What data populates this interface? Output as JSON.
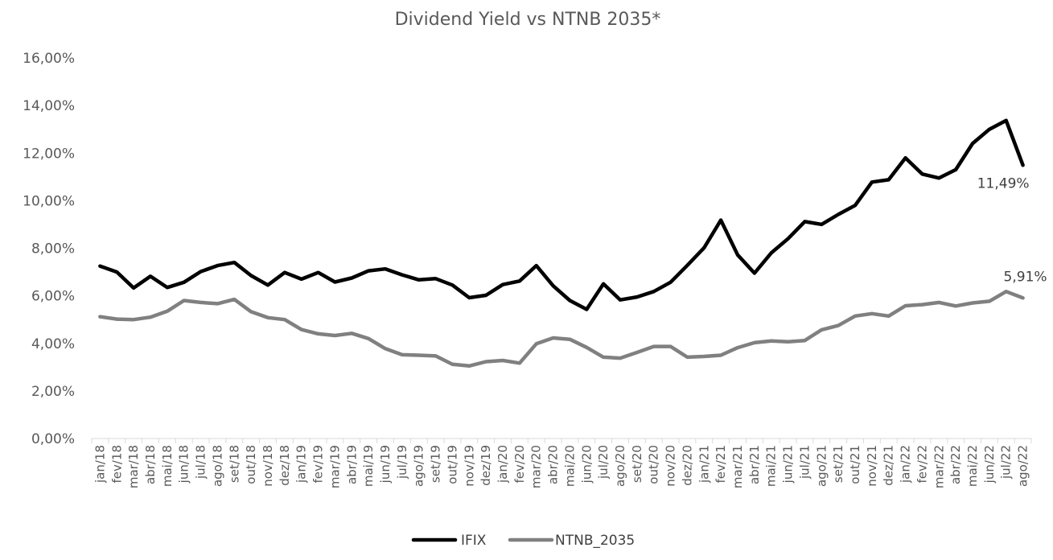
{
  "chart_data": {
    "type": "line",
    "title": "Dividend Yield vs NTNB 2035*",
    "xlabel": "",
    "ylabel": "",
    "ylim": [
      0,
      16
    ],
    "yticks": [
      "0,00%",
      "2,00%",
      "4,00%",
      "6,00%",
      "8,00%",
      "10,00%",
      "12,00%",
      "14,00%",
      "16,00%"
    ],
    "grid": false,
    "legend_position": "bottom",
    "categories": [
      "jan/18",
      "fev/18",
      "mar/18",
      "abr/18",
      "mai/18",
      "jun/18",
      "jul/18",
      "ago/18",
      "set/18",
      "out/18",
      "nov/18",
      "dez/18",
      "jan/19",
      "fev/19",
      "mar/19",
      "abr/19",
      "mai/19",
      "jun/19",
      "jul/19",
      "ago/19",
      "set/19",
      "out/19",
      "nov/19",
      "dez/19",
      "jan/20",
      "fev/20",
      "mar/20",
      "abr/20",
      "mai/20",
      "jun/20",
      "jul/20",
      "ago/20",
      "set/20",
      "out/20",
      "nov/20",
      "dez/20",
      "jan/21",
      "fev/21",
      "mar/21",
      "abr/21",
      "mai/21",
      "jun/21",
      "jul/21",
      "ago/21",
      "set/21",
      "out/21",
      "nov/21",
      "dez/21",
      "jan/22",
      "fev/22",
      "mar/22",
      "abr/22",
      "mai/22",
      "jun/22",
      "jul/22",
      "ago/22"
    ],
    "series": [
      {
        "name": "IFIX",
        "color": "#000000",
        "values": [
          7.25,
          7.0,
          6.33,
          6.82,
          6.35,
          6.57,
          7.02,
          7.27,
          7.4,
          6.85,
          6.45,
          6.98,
          6.7,
          6.98,
          6.58,
          6.75,
          7.05,
          7.13,
          6.88,
          6.67,
          6.72,
          6.45,
          5.92,
          6.02,
          6.47,
          6.62,
          7.27,
          6.42,
          5.8,
          5.43,
          6.5,
          5.83,
          5.95,
          6.18,
          6.57,
          7.28,
          8.02,
          9.18,
          7.72,
          6.95,
          7.8,
          8.4,
          9.12,
          9.0,
          9.42,
          9.8,
          10.78,
          10.88,
          11.8,
          11.12,
          10.95,
          11.3,
          12.4,
          13.0,
          13.37,
          11.49
        ],
        "last_label": "11,49%"
      },
      {
        "name": "NTNB_2035",
        "color": "#808080",
        "values": [
          5.12,
          5.02,
          5.0,
          5.1,
          5.35,
          5.8,
          5.72,
          5.67,
          5.85,
          5.33,
          5.08,
          5.0,
          4.58,
          4.4,
          4.33,
          4.42,
          4.2,
          3.78,
          3.52,
          3.5,
          3.47,
          3.12,
          3.05,
          3.23,
          3.28,
          3.17,
          3.98,
          4.23,
          4.17,
          3.83,
          3.42,
          3.38,
          3.62,
          3.87,
          3.87,
          3.42,
          3.45,
          3.5,
          3.82,
          4.03,
          4.1,
          4.07,
          4.12,
          4.57,
          4.75,
          5.15,
          5.25,
          5.15,
          5.58,
          5.63,
          5.72,
          5.57,
          5.7,
          5.77,
          6.18,
          5.91
        ],
        "last_label": "5,91%"
      }
    ]
  }
}
